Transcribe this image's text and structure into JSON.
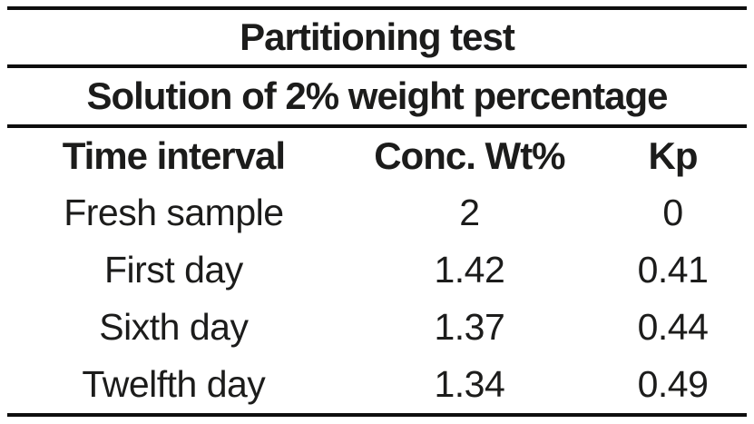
{
  "table": {
    "title": "Partitioning test",
    "subtitle": "Solution of 2% weight percentage",
    "columns": [
      "Time interval",
      "Conc. Wt%",
      "Kp"
    ],
    "rows": [
      {
        "interval": "Fresh sample",
        "conc": "2",
        "kp": "0"
      },
      {
        "interval": "First day",
        "conc": "1.42",
        "kp": "0.41"
      },
      {
        "interval": "Sixth day",
        "conc": "1.37",
        "kp": "0.44"
      },
      {
        "interval": "Twelfth day",
        "conc": "1.34",
        "kp": "0.49"
      }
    ],
    "text_color": "#1c1c1b",
    "rule_color": "#0e0e0e"
  },
  "chart_data": {
    "type": "table",
    "title": "Partitioning test",
    "subtitle": "Solution of 2% weight percentage",
    "columns": [
      "Time interval",
      "Conc. Wt%",
      "Kp"
    ],
    "rows": [
      [
        "Fresh sample",
        2,
        0
      ],
      [
        "First day",
        1.42,
        0.41
      ],
      [
        "Sixth day",
        1.37,
        0.44
      ],
      [
        "Twelfth day",
        1.34,
        0.49
      ]
    ]
  }
}
